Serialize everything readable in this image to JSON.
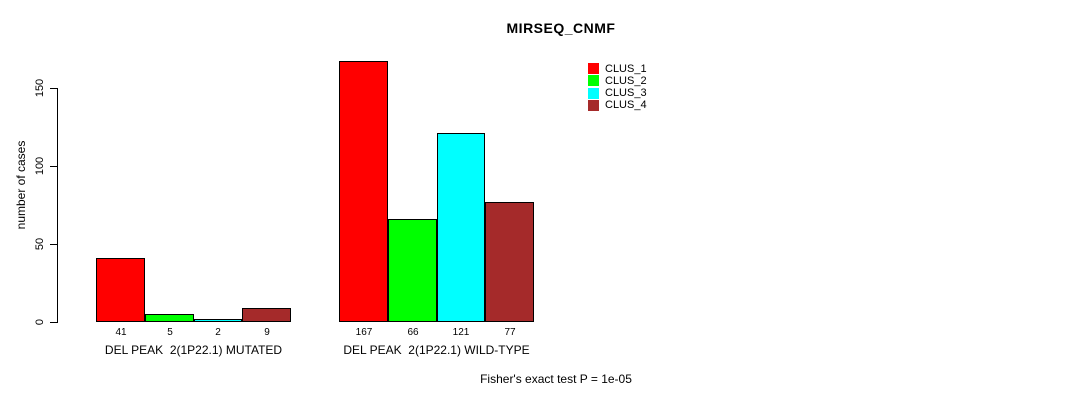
{
  "chart_data": {
    "type": "bar",
    "title": "MIRSEQ_CNMF",
    "ylabel": "number of cases",
    "xlabel": "",
    "annotation": "Fisher's exact test P = 1e-05",
    "categories": [
      "DEL PEAK  2(1P22.1) MUTATED",
      "DEL PEAK  2(1P22.1) WILD-TYPE"
    ],
    "series": [
      {
        "name": "CLUS_1",
        "color": "#FF0000",
        "values": [
          41,
          167
        ]
      },
      {
        "name": "CLUS_2",
        "color": "#00FF00",
        "values": [
          5,
          66
        ]
      },
      {
        "name": "CLUS_3",
        "color": "#00FFFF",
        "values": [
          2,
          121
        ]
      },
      {
        "name": "CLUS_4",
        "color": "#A52A2A",
        "values": [
          9,
          77
        ]
      }
    ],
    "yticks": [
      0,
      50,
      100,
      150
    ],
    "ylim": [
      0,
      175
    ],
    "grid": false,
    "legend_position": "top-right",
    "bar_borders": true,
    "show_values_under_bars": true
  }
}
